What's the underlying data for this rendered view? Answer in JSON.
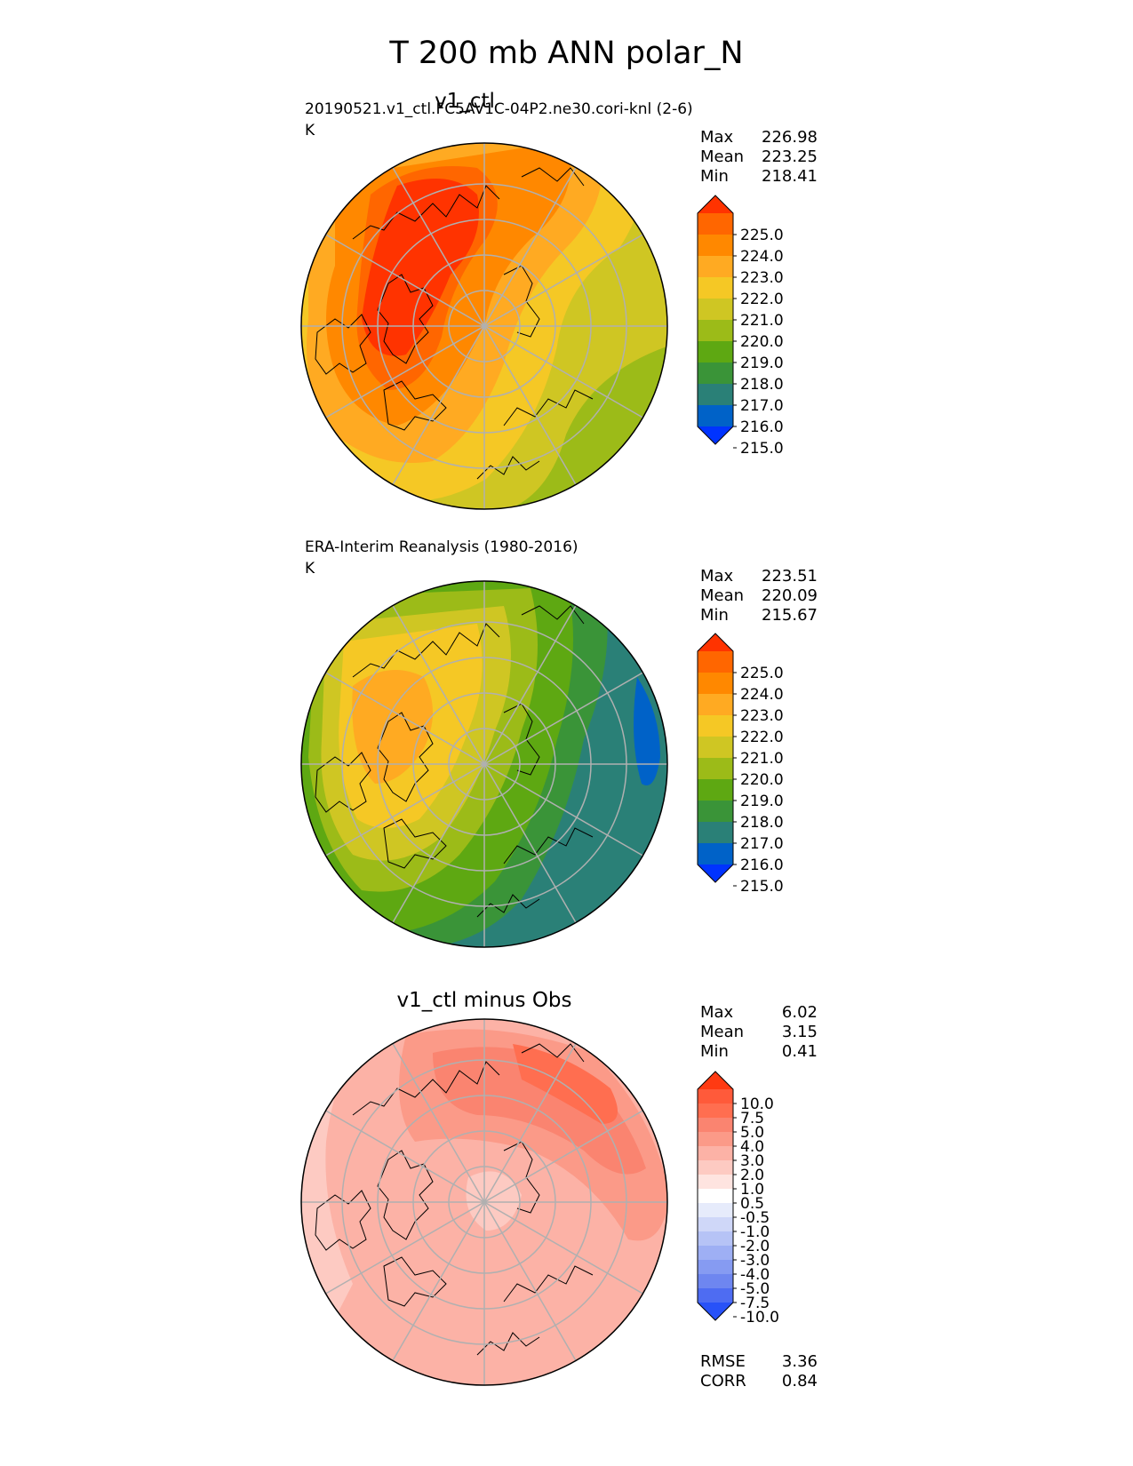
{
  "figure_title": "T 200 mb ANN polar_N",
  "panels": [
    {
      "title": "v1_ctl",
      "source": "20190521.v1_ctl.FC5AV1C-04P2.ne30.cori-knl (2-6)",
      "units": "K",
      "stats": {
        "max_label": "Max",
        "max": "226.98",
        "mean_label": "Mean",
        "mean": "223.25",
        "min_label": "Min",
        "min": "218.41"
      }
    },
    {
      "title": "",
      "source": "ERA-Interim Reanalysis (1980-2016)",
      "units": "K",
      "stats": {
        "max_label": "Max",
        "max": "223.51",
        "mean_label": "Mean",
        "mean": "220.09",
        "min_label": "Min",
        "min": "215.67"
      }
    },
    {
      "title": "v1_ctl minus Obs",
      "source": "",
      "units": "",
      "stats": {
        "max_label": "Max",
        "max": "6.02",
        "mean_label": "Mean",
        "mean": "3.15",
        "min_label": "Min",
        "min": "0.41"
      },
      "metrics": {
        "rmse_label": "RMSE",
        "rmse": "3.36",
        "corr_label": "CORR",
        "corr": "0.84"
      }
    }
  ],
  "chart_data": [
    {
      "type": "heatmap",
      "projection": "north polar stereographic",
      "title": "v1_ctl",
      "units": "K",
      "colorbar": {
        "ticks": [
          "225.0",
          "224.0",
          "223.0",
          "222.0",
          "221.0",
          "220.0",
          "219.0",
          "218.0",
          "217.0",
          "216.0",
          "215.0"
        ],
        "colors": [
          "#ff3300",
          "#ff6600",
          "#ff8800",
          "#ffaa22",
          "#f5c825",
          "#cfc623",
          "#9cbb18",
          "#5ea812",
          "#3a9438",
          "#2a8077",
          "#0062c8",
          "#0033ff"
        ]
      },
      "stats": {
        "max": 226.98,
        "mean": 223.25,
        "min": 218.41
      }
    },
    {
      "type": "heatmap",
      "projection": "north polar stereographic",
      "title": "ERA-Interim Reanalysis (1980-2016)",
      "units": "K",
      "colorbar": {
        "ticks": [
          "225.0",
          "224.0",
          "223.0",
          "222.0",
          "221.0",
          "220.0",
          "219.0",
          "218.0",
          "217.0",
          "216.0",
          "215.0"
        ],
        "colors": [
          "#ff3300",
          "#ff6600",
          "#ff8800",
          "#ffaa22",
          "#f5c825",
          "#cfc623",
          "#9cbb18",
          "#5ea812",
          "#3a9438",
          "#2a8077",
          "#0062c8",
          "#0033ff"
        ]
      },
      "stats": {
        "max": 223.51,
        "mean": 220.09,
        "min": 215.67
      }
    },
    {
      "type": "heatmap",
      "projection": "north polar stereographic",
      "title": "v1_ctl minus Obs",
      "colorbar": {
        "ticks": [
          "10.0",
          "7.5",
          "5.0",
          "4.0",
          "3.0",
          "2.0",
          "1.0",
          "0.5",
          "-0.5",
          "-1.0",
          "-2.0",
          "-3.0",
          "-4.0",
          "-5.0",
          "-7.5",
          "-10.0"
        ],
        "colors": [
          "#ff3a12",
          "#ff5a3a",
          "#ff6e50",
          "#fa8470",
          "#fb9a88",
          "#fcb2a6",
          "#fdcac2",
          "#fee4e0",
          "#ffffff",
          "#e6ebfb",
          "#cfd7f8",
          "#b6c3f6",
          "#9eaff4",
          "#869bf2",
          "#6e86f0",
          "#4e6cf2",
          "#2852f8"
        ]
      },
      "stats": {
        "max": 6.02,
        "mean": 3.15,
        "min": 0.41
      },
      "rmse": 3.36,
      "corr": 0.84
    }
  ]
}
